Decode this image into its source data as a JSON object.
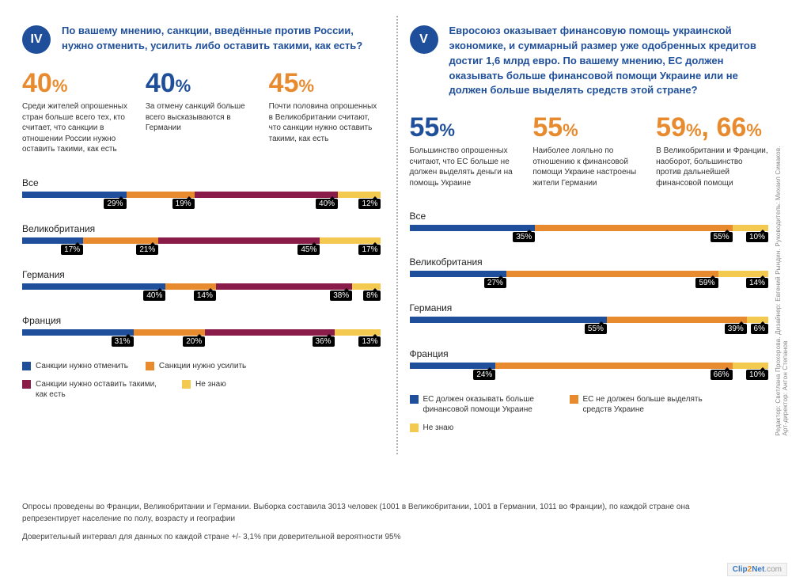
{
  "colors": {
    "blue": "#1f4f9a",
    "orange": "#e78b2e",
    "maroon": "#8a1c4a",
    "yellow": "#f3c94f",
    "text_blue": "#1f4f9a",
    "text_orange": "#e78b2e"
  },
  "left": {
    "roman": "IV",
    "badge_color": "#1f4f9a",
    "question_color": "#1f4f9a",
    "question": "По вашему мнению, санкции, введённые против России, нужно отменить, усилить либо оставить такими, как есть?",
    "stats": [
      {
        "pct": "40%",
        "color": "#e78b2e",
        "desc": "Среди жителей опрошенных стран больше всего тех, кто считает, что санкции в отношении России нужно оставить такими, как есть"
      },
      {
        "pct": "40%",
        "color": "#1f4f9a",
        "desc": "За отмену санкций больше всего высказываются в Германии"
      },
      {
        "pct": "45%",
        "color": "#e78b2e",
        "desc": "Почти половина опрошенных в Великобритании считают, что санкции нужно оставить такими, как есть"
      }
    ],
    "segments_colors": [
      "#1f4f9a",
      "#e78b2e",
      "#8a1c4a",
      "#f3c94f"
    ],
    "rows": [
      {
        "label": "Все",
        "values": [
          29,
          19,
          40,
          12
        ]
      },
      {
        "label": "Великобритания",
        "values": [
          17,
          21,
          45,
          17
        ]
      },
      {
        "label": "Германия",
        "values": [
          40,
          14,
          38,
          8
        ]
      },
      {
        "label": "Франция",
        "values": [
          31,
          20,
          36,
          13
        ]
      }
    ],
    "legend": [
      {
        "color": "#1f4f9a",
        "label": "Санкции нужно отменить"
      },
      {
        "color": "#e78b2e",
        "label": "Санкции нужно усилить"
      },
      {
        "color": "#8a1c4a",
        "label": "Санкции нужно оставить такими, как есть"
      },
      {
        "color": "#f3c94f",
        "label": "Не знаю"
      }
    ]
  },
  "right": {
    "roman": "V",
    "badge_color": "#1f4f9a",
    "question_color": "#1f4f9a",
    "question": "Евросоюз оказывает финансовую помощь украинской экономике, и суммарный размер уже одобренных кредитов достиг 1,6 млрд евро. По вашему мнению, ЕС должен оказывать больше финансовой помощи Украине или не должен больше выделять средств этой стране?",
    "stats": [
      {
        "pct": "55%",
        "color": "#1f4f9a",
        "desc": "Большинство опрошенных считают, что ЕС больше не должен выделять деньги на помощь Украине"
      },
      {
        "pct": "55%",
        "color": "#e78b2e",
        "desc": "Наиболее лояльно по отношению к финансовой помощи Украине настроены жители Германии"
      },
      {
        "pct": "59%, 66%",
        "color": "#e78b2e",
        "desc": "В Великобритании и Франции, наоборот, большинство против дальнейшей финансовой помощи"
      }
    ],
    "segments_colors": [
      "#1f4f9a",
      "#e78b2e",
      "#f3c94f"
    ],
    "rows": [
      {
        "label": "Все",
        "values": [
          35,
          55,
          10
        ]
      },
      {
        "label": "Великобритания",
        "values": [
          27,
          59,
          14
        ]
      },
      {
        "label": "Германия",
        "values": [
          55,
          39,
          6
        ]
      },
      {
        "label": "Франция",
        "values": [
          24,
          66,
          10
        ]
      }
    ],
    "legend": [
      {
        "color": "#1f4f9a",
        "label": "ЕС должен оказывать больше финансовой помощи Украине"
      },
      {
        "color": "#e78b2e",
        "label": "ЕС не должен больше выделять средств Украине"
      },
      {
        "color": "#f3c94f",
        "label": "Не знаю"
      }
    ]
  },
  "footnotes": [
    "Опросы проведены во Франции, Великобритании и Германии. Выборка составила 3013 человек (1001 в Великобритании, 1001 в Германии, 1011 во Франции), по каждой стране она репрезентирует население по полу, возрасту и географии",
    "Доверительный интервал для данных по каждой стране +/- 3,1% при доверительной вероятности 95%"
  ],
  "credits": "Редактор: Светлана Прохорова. Дизайнер: Евгений Рындин. Руководитель: Михаил Симаков. Арт-директор: Антон Степанов",
  "watermark": {
    "a": "Clip",
    "b": "2",
    "c": "Net",
    "d": ".com"
  }
}
